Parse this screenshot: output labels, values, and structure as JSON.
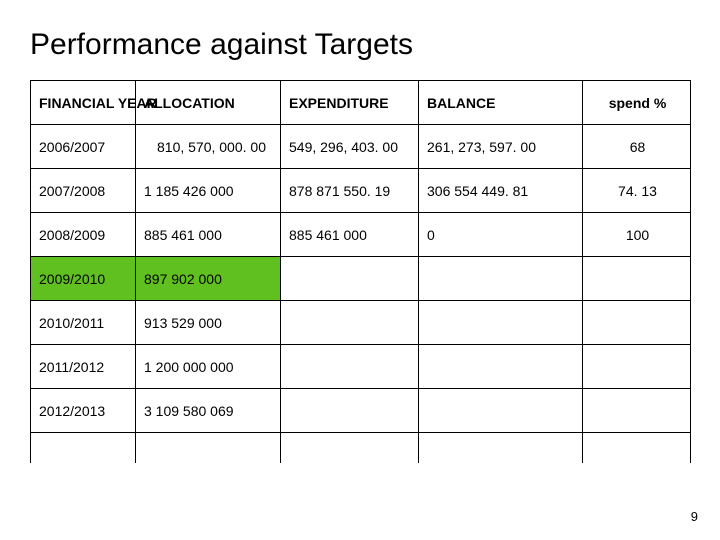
{
  "title": "Performance against Targets",
  "headers": {
    "year": "FINANCIAL YEAR",
    "allocation": "ALLOCATION",
    "expenditure": "EXPENDITURE",
    "balance": "BALANCE",
    "spend": "spend %"
  },
  "rows": [
    {
      "year": "2006/2007",
      "allocation": "810, 570, 000. 00",
      "expenditure": "549, 296, 403. 00",
      "balance": "261, 273, 597. 00",
      "spend": "68"
    },
    {
      "year": "2007/2008",
      "allocation": "1 185 426 000",
      "expenditure": "878 871 550. 19",
      "balance": "306 554 449. 81",
      "spend": "74. 13"
    },
    {
      "year": "2008/2009",
      "allocation": "885 461 000",
      "expenditure": "885 461 000",
      "balance": "0",
      "spend": "100"
    },
    {
      "year": "2009/2010",
      "allocation": "897 902 000",
      "expenditure": "",
      "balance": "",
      "spend": ""
    },
    {
      "year": "2010/2011",
      "allocation": "913 529 000",
      "expenditure": "",
      "balance": "",
      "spend": ""
    },
    {
      "year": "2011/2012",
      "allocation": "1 200 000 000",
      "expenditure": "",
      "balance": "",
      "spend": ""
    },
    {
      "year": "2012/2013",
      "allocation": "3 109 580 069",
      "expenditure": "",
      "balance": "",
      "spend": ""
    }
  ],
  "page_number": "9",
  "highlight_row_index": 3,
  "colors": {
    "highlight": "#60c020",
    "border": "#000000",
    "background": "#ffffff"
  }
}
